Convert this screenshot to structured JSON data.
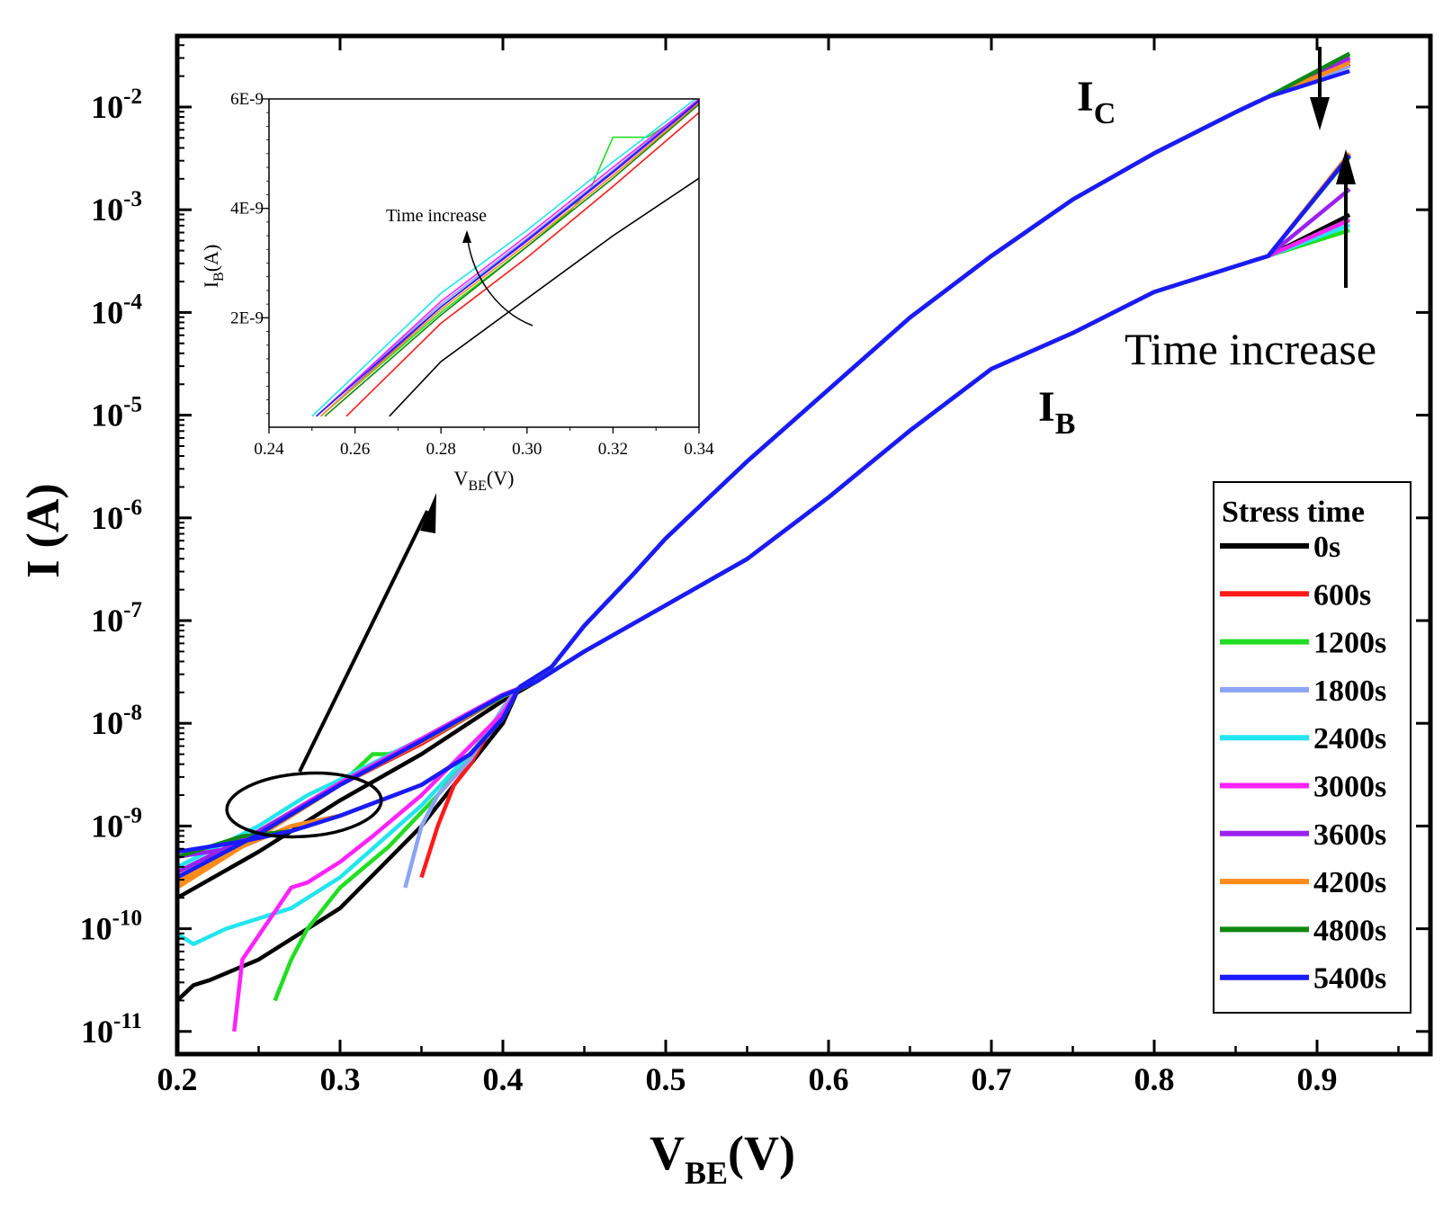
{
  "chart_data": {
    "type": "line",
    "xlabel": "V",
    "xlabel_sub": "BE",
    "xlabel_unit": "(V)",
    "ylabel": "I (A)",
    "xlim": [
      0.2,
      0.95
    ],
    "ylim_log10": [
      -11,
      -1.3
    ],
    "x_ticks": [
      "0.2",
      "0.3",
      "0.4",
      "0.5",
      "0.6",
      "0.7",
      "0.8",
      "0.9"
    ],
    "y_ticks": [
      {
        "base": "10",
        "exp": "-11"
      },
      {
        "base": "10",
        "exp": "-10"
      },
      {
        "base": "10",
        "exp": "-9"
      },
      {
        "base": "10",
        "exp": "-8"
      },
      {
        "base": "10",
        "exp": "-7"
      },
      {
        "base": "10",
        "exp": "-6"
      },
      {
        "base": "10",
        "exp": "-5"
      },
      {
        "base": "10",
        "exp": "-4"
      },
      {
        "base": "10",
        "exp": "-3"
      },
      {
        "base": "10",
        "exp": "-2"
      }
    ],
    "curve_labels": {
      "ic": {
        "main": "I",
        "sub": "C"
      },
      "ib": {
        "main": "I",
        "sub": "B"
      }
    },
    "annotation_main": "Time increase",
    "legend": {
      "title": "Stress time",
      "placement": "bottom-right",
      "entries": [
        {
          "label": "0s",
          "color": "#000000"
        },
        {
          "label": "600s",
          "color": "#ff1a1a"
        },
        {
          "label": "1200s",
          "color": "#22dd22"
        },
        {
          "label": "1800s",
          "color": "#8ca3f5"
        },
        {
          "label": "2400s",
          "color": "#22e5ee"
        },
        {
          "label": "3000s",
          "color": "#ff22ff"
        },
        {
          "label": "3600s",
          "color": "#9922ee"
        },
        {
          "label": "4200s",
          "color": "#ff8c1a"
        },
        {
          "label": "4800s",
          "color": "#118811"
        },
        {
          "label": "5400s",
          "color": "#1a1aff"
        }
      ]
    },
    "ic_common": [
      [
        0.41,
        -7.65
      ],
      [
        0.43,
        -7.45
      ],
      [
        0.45,
        -7.05
      ],
      [
        0.48,
        -6.55
      ],
      [
        0.5,
        -6.2
      ],
      [
        0.55,
        -5.45
      ],
      [
        0.6,
        -4.75
      ],
      [
        0.65,
        -4.05
      ],
      [
        0.7,
        -3.45
      ],
      [
        0.75,
        -2.9
      ],
      [
        0.8,
        -2.45
      ],
      [
        0.85,
        -2.05
      ],
      [
        0.87,
        -1.9
      ]
    ],
    "ib_common": [
      [
        0.42,
        -7.6
      ],
      [
        0.45,
        -7.3
      ],
      [
        0.5,
        -6.85
      ],
      [
        0.55,
        -6.4
      ],
      [
        0.6,
        -5.8
      ],
      [
        0.65,
        -5.15
      ],
      [
        0.7,
        -4.55
      ],
      [
        0.75,
        -4.2
      ],
      [
        0.8,
        -3.8
      ],
      [
        0.85,
        -3.55
      ],
      [
        0.87,
        -3.45
      ]
    ],
    "ic_tail_end": [
      -1.58,
      -1.55,
      -1.5,
      -1.6,
      -1.48,
      -1.53,
      -1.52,
      -1.57,
      -1.48,
      -1.65
    ],
    "ib_tail_end": [
      -3.05,
      -3.1,
      -3.2,
      -3.1,
      -3.15,
      -3.1,
      -2.8,
      -2.45,
      -2.48,
      -2.47
    ],
    "ib_low": [
      [
        [
          0.2,
          -9.7
        ],
        [
          0.25,
          -9.25
        ],
        [
          0.3,
          -8.75
        ],
        [
          0.35,
          -8.3
        ],
        [
          0.4,
          -7.78
        ],
        [
          0.42,
          -7.6
        ]
      ],
      [
        [
          0.2,
          -9.5
        ],
        [
          0.25,
          -9.1
        ],
        [
          0.3,
          -8.6
        ],
        [
          0.35,
          -8.2
        ],
        [
          0.4,
          -7.74
        ],
        [
          0.42,
          -7.6
        ]
      ],
      [
        [
          0.2,
          -9.55
        ],
        [
          0.25,
          -9.1
        ],
        [
          0.3,
          -8.6
        ],
        [
          0.32,
          -8.3
        ],
        [
          0.33,
          -8.3
        ],
        [
          0.35,
          -8.18
        ],
        [
          0.4,
          -7.74
        ],
        [
          0.42,
          -7.6
        ]
      ],
      [
        [
          0.2,
          -9.45
        ],
        [
          0.25,
          -9.05
        ],
        [
          0.3,
          -8.58
        ],
        [
          0.35,
          -8.15
        ],
        [
          0.4,
          -7.72
        ],
        [
          0.42,
          -7.6
        ]
      ],
      [
        [
          0.2,
          -9.4
        ],
        [
          0.25,
          -9.0
        ],
        [
          0.28,
          -8.7
        ],
        [
          0.3,
          -8.55
        ],
        [
          0.35,
          -8.15
        ],
        [
          0.4,
          -7.72
        ],
        [
          0.42,
          -7.6
        ]
      ],
      [
        [
          0.2,
          -9.45
        ],
        [
          0.25,
          -9.05
        ],
        [
          0.3,
          -8.58
        ],
        [
          0.35,
          -8.15
        ],
        [
          0.4,
          -7.72
        ],
        [
          0.42,
          -7.6
        ]
      ],
      [
        [
          0.2,
          -9.45
        ],
        [
          0.25,
          -9.05
        ],
        [
          0.3,
          -8.6
        ],
        [
          0.35,
          -8.17
        ],
        [
          0.4,
          -7.73
        ],
        [
          0.42,
          -7.6
        ]
      ],
      [
        [
          0.2,
          -9.55
        ],
        [
          0.25,
          -9.1
        ],
        [
          0.3,
          -8.6
        ],
        [
          0.35,
          -8.18
        ],
        [
          0.4,
          -7.73
        ],
        [
          0.42,
          -7.6
        ]
      ],
      [
        [
          0.2,
          -9.5
        ],
        [
          0.25,
          -9.08
        ],
        [
          0.3,
          -8.6
        ],
        [
          0.35,
          -8.17
        ],
        [
          0.4,
          -7.73
        ],
        [
          0.42,
          -7.6
        ]
      ],
      [
        [
          0.2,
          -9.5
        ],
        [
          0.25,
          -9.08
        ],
        [
          0.3,
          -8.6
        ],
        [
          0.35,
          -8.17
        ],
        [
          0.4,
          -7.73
        ],
        [
          0.42,
          -7.6
        ]
      ]
    ],
    "ic_low": [
      [
        [
          0.2,
          -10.7
        ],
        [
          0.21,
          -10.55
        ],
        [
          0.22,
          -10.5
        ],
        [
          0.25,
          -10.3
        ],
        [
          0.3,
          -9.8
        ],
        [
          0.35,
          -9.0
        ],
        [
          0.4,
          -8.0
        ],
        [
          0.41,
          -7.65
        ]
      ],
      [
        [
          0.35,
          -9.5
        ],
        [
          0.36,
          -9.0
        ],
        [
          0.37,
          -8.6
        ],
        [
          0.38,
          -8.4
        ],
        [
          0.4,
          -7.85
        ],
        [
          0.41,
          -7.65
        ]
      ],
      [
        [
          0.26,
          -10.7
        ],
        [
          0.27,
          -10.3
        ],
        [
          0.28,
          -10.0
        ],
        [
          0.3,
          -9.6
        ],
        [
          0.33,
          -9.2
        ],
        [
          0.36,
          -8.7
        ],
        [
          0.39,
          -8.1
        ],
        [
          0.41,
          -7.65
        ]
      ],
      [
        [
          0.34,
          -9.6
        ],
        [
          0.35,
          -9.0
        ],
        [
          0.36,
          -8.7
        ],
        [
          0.38,
          -8.35
        ],
        [
          0.4,
          -7.85
        ],
        [
          0.41,
          -7.65
        ]
      ],
      [
        [
          0.2,
          -10.05
        ],
        [
          0.21,
          -10.15
        ],
        [
          0.23,
          -10.0
        ],
        [
          0.27,
          -9.8
        ],
        [
          0.3,
          -9.5
        ],
        [
          0.35,
          -8.8
        ],
        [
          0.4,
          -7.95
        ],
        [
          0.41,
          -7.65
        ]
      ],
      [
        [
          0.235,
          -11.0
        ],
        [
          0.24,
          -10.3
        ],
        [
          0.27,
          -9.6
        ],
        [
          0.28,
          -9.55
        ],
        [
          0.3,
          -9.35
        ],
        [
          0.32,
          -9.1
        ],
        [
          0.35,
          -8.7
        ],
        [
          0.4,
          -7.9
        ],
        [
          0.41,
          -7.65
        ]
      ],
      [
        [
          0.2,
          -9.3
        ],
        [
          0.24,
          -9.2
        ],
        [
          0.27,
          -9.0
        ],
        [
          0.3,
          -8.9
        ],
        [
          0.35,
          -8.6
        ],
        [
          0.38,
          -8.3
        ],
        [
          0.4,
          -7.95
        ],
        [
          0.41,
          -7.65
        ]
      ],
      [
        [
          0.2,
          -9.6
        ],
        [
          0.24,
          -9.2
        ],
        [
          0.27,
          -9.0
        ],
        [
          0.3,
          -8.9
        ],
        [
          0.35,
          -8.6
        ],
        [
          0.38,
          -8.3
        ],
        [
          0.4,
          -7.95
        ],
        [
          0.41,
          -7.65
        ]
      ],
      [
        [
          0.2,
          -9.3
        ],
        [
          0.24,
          -9.1
        ],
        [
          0.27,
          -9.05
        ],
        [
          0.3,
          -8.9
        ],
        [
          0.35,
          -8.6
        ],
        [
          0.38,
          -8.3
        ],
        [
          0.4,
          -7.95
        ],
        [
          0.41,
          -7.65
        ]
      ],
      [
        [
          0.2,
          -9.25
        ],
        [
          0.24,
          -9.15
        ],
        [
          0.27,
          -9.05
        ],
        [
          0.3,
          -8.9
        ],
        [
          0.35,
          -8.6
        ],
        [
          0.38,
          -8.3
        ],
        [
          0.4,
          -7.95
        ],
        [
          0.41,
          -7.65
        ]
      ]
    ],
    "inset": {
      "xlabel": "V",
      "xlabel_sub": "BE",
      "xlabel_unit": "(V)",
      "ylabel": "I",
      "ylabel_sub": "B",
      "ylabel_unit": "(A)",
      "xlim": [
        0.24,
        0.34
      ],
      "ylim": [
        0,
        6e-09
      ],
      "x_ticks": [
        "0.24",
        "0.26",
        "0.28",
        "0.30",
        "0.32",
        "0.34"
      ],
      "y_ticks": [
        {
          "label": "2E-9",
          "value": 2e-09
        },
        {
          "label": "4E-9",
          "value": 4e-09
        },
        {
          "label": "6E-9",
          "value": 6e-09
        }
      ],
      "annotation": "Time increase",
      "series": [
        [
          [
            0.268,
            0.2
          ],
          [
            0.28,
            1.2
          ],
          [
            0.3,
            2.35
          ],
          [
            0.32,
            3.5
          ],
          [
            0.34,
            4.55
          ]
        ],
        [
          [
            0.258,
            0.2
          ],
          [
            0.28,
            1.9
          ],
          [
            0.3,
            3.1
          ],
          [
            0.32,
            4.4
          ],
          [
            0.34,
            5.75
          ]
        ],
        [
          [
            0.252,
            0.2
          ],
          [
            0.28,
            2.1
          ],
          [
            0.3,
            3.3
          ],
          [
            0.31,
            3.95
          ],
          [
            0.315,
            4.4
          ],
          [
            0.32,
            5.3
          ],
          [
            0.328,
            5.3
          ],
          [
            0.34,
            5.9
          ]
        ],
        [
          [
            0.251,
            0.2
          ],
          [
            0.28,
            2.25
          ],
          [
            0.3,
            3.45
          ],
          [
            0.32,
            4.7
          ],
          [
            0.34,
            6.0
          ]
        ],
        [
          [
            0.25,
            0.2
          ],
          [
            0.28,
            2.45
          ],
          [
            0.3,
            3.6
          ],
          [
            0.32,
            4.85
          ],
          [
            0.34,
            6.05
          ]
        ],
        [
          [
            0.251,
            0.2
          ],
          [
            0.28,
            2.3
          ],
          [
            0.3,
            3.5
          ],
          [
            0.32,
            4.75
          ],
          [
            0.34,
            6.0
          ]
        ],
        [
          [
            0.252,
            0.2
          ],
          [
            0.28,
            2.2
          ],
          [
            0.3,
            3.4
          ],
          [
            0.32,
            4.65
          ],
          [
            0.34,
            5.95
          ]
        ],
        [
          [
            0.252,
            0.2
          ],
          [
            0.28,
            2.15
          ],
          [
            0.3,
            3.35
          ],
          [
            0.32,
            4.6
          ],
          [
            0.34,
            5.92
          ]
        ],
        [
          [
            0.253,
            0.2
          ],
          [
            0.28,
            2.05
          ],
          [
            0.3,
            3.3
          ],
          [
            0.32,
            4.55
          ],
          [
            0.34,
            5.9
          ]
        ],
        [
          [
            0.251,
            0.2
          ],
          [
            0.28,
            2.2
          ],
          [
            0.3,
            3.42
          ],
          [
            0.32,
            4.67
          ],
          [
            0.34,
            5.97
          ]
        ]
      ]
    }
  }
}
